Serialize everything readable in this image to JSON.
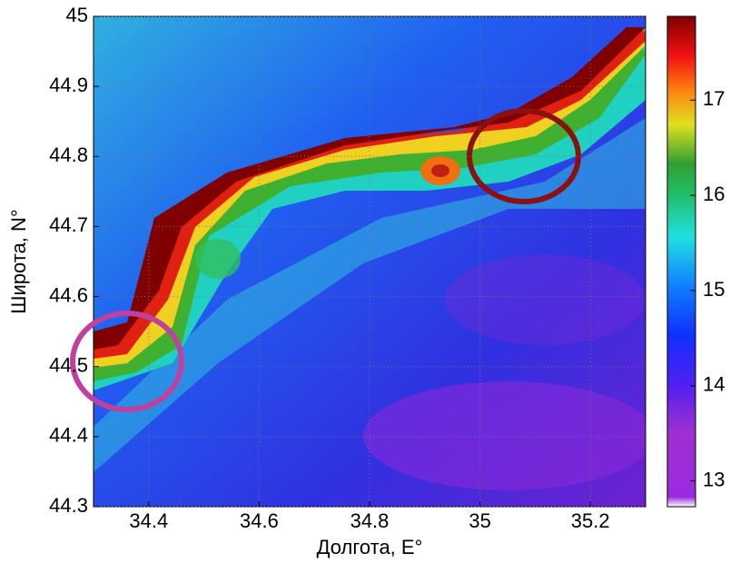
{
  "chart_data": {
    "type": "heatmap",
    "xlabel": "Долгота, E°",
    "ylabel": "Широта, N°",
    "xlim": [
      34.3,
      35.3
    ],
    "xticks": [
      34.4,
      34.6,
      34.8,
      35,
      35.2
    ],
    "ylim": [
      44.3,
      45
    ],
    "yticks": [
      44.3,
      44.4,
      44.5,
      44.6,
      44.7,
      44.8,
      44.9,
      45
    ],
    "grid": true,
    "clim": [
      12.73,
      17.88
    ],
    "cticks": [
      13,
      14,
      15,
      16,
      17
    ]
  }
}
